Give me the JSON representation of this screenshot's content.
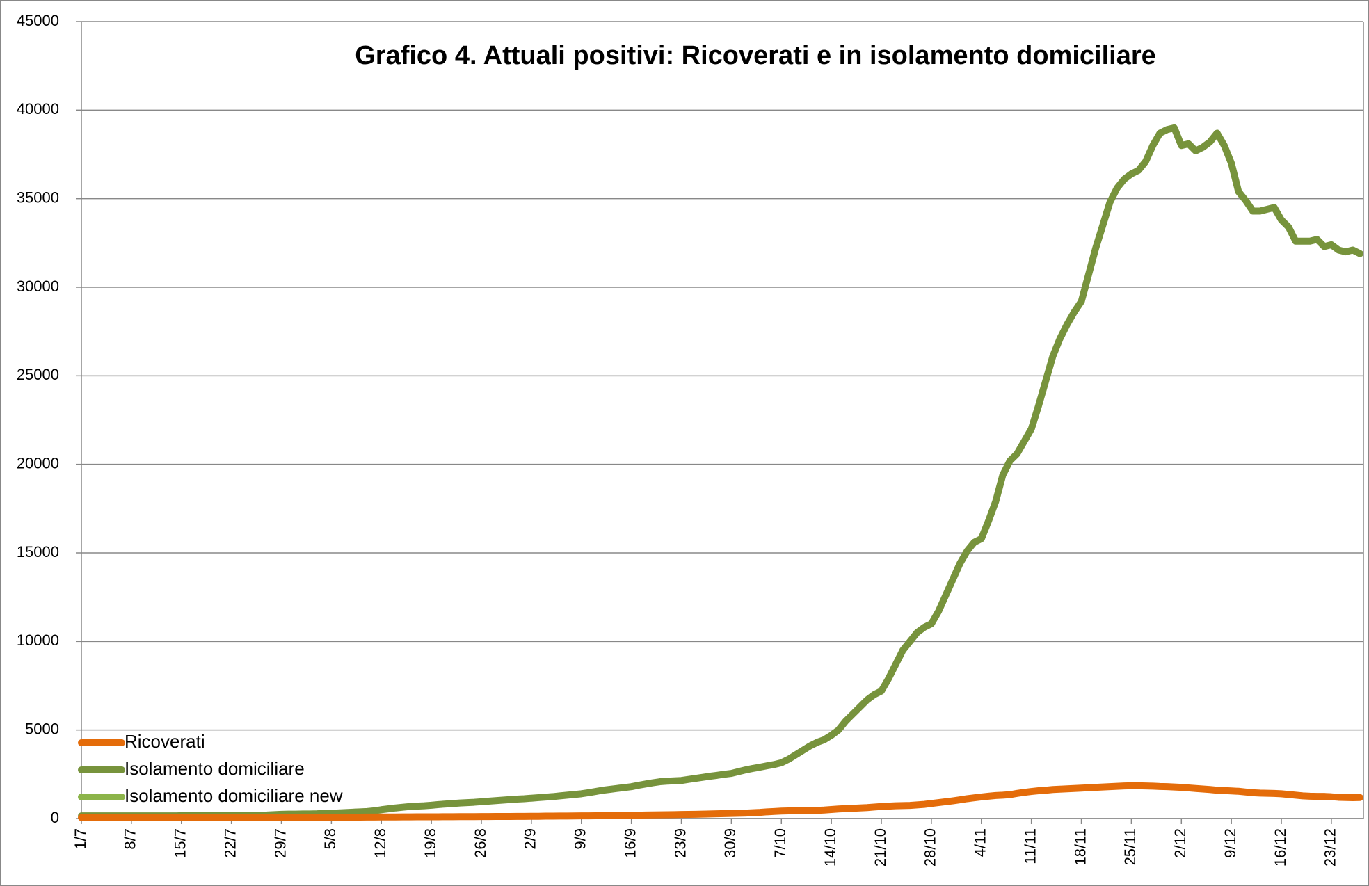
{
  "chart_data": {
    "type": "line",
    "title": "Grafico 4. Attuali positivi: Ricoverati e in isolamento domiciliare",
    "categories": [
      "1/7",
      null,
      null,
      null,
      null,
      null,
      null,
      "8/7",
      null,
      null,
      null,
      null,
      null,
      null,
      "15/7",
      null,
      null,
      null,
      null,
      null,
      null,
      "22/7",
      null,
      null,
      null,
      null,
      null,
      null,
      "29/7",
      null,
      null,
      null,
      null,
      null,
      null,
      "5/8",
      null,
      null,
      null,
      null,
      null,
      null,
      "12/8",
      null,
      null,
      null,
      null,
      null,
      null,
      "19/8",
      null,
      null,
      null,
      null,
      null,
      null,
      "26/8",
      null,
      null,
      null,
      null,
      null,
      null,
      "2/9",
      null,
      null,
      null,
      null,
      null,
      null,
      "9/9",
      null,
      null,
      null,
      null,
      null,
      null,
      "16/9",
      null,
      null,
      null,
      null,
      null,
      null,
      "23/9",
      null,
      null,
      null,
      null,
      null,
      null,
      "30/9",
      null,
      null,
      null,
      null,
      null,
      null,
      "7/10",
      null,
      null,
      null,
      null,
      null,
      null,
      "14/10",
      null,
      null,
      null,
      null,
      null,
      null,
      "21/10",
      null,
      null,
      null,
      null,
      null,
      null,
      "28/10",
      null,
      null,
      null,
      null,
      null,
      null,
      "4/11",
      null,
      null,
      null,
      null,
      null,
      null,
      "11/11",
      null,
      null,
      null,
      null,
      null,
      null,
      "18/11",
      null,
      null,
      null,
      null,
      null,
      null,
      "25/11",
      null,
      null,
      null,
      null,
      null,
      null,
      "2/12",
      null,
      null,
      null,
      null,
      null,
      null,
      "9/12",
      null,
      null,
      null,
      null,
      null,
      null,
      "16/12",
      null,
      null,
      null,
      null,
      null,
      null,
      "23/12",
      null,
      null,
      null,
      null
    ],
    "series": [
      {
        "name": "Ricoverati",
        "color": "#e46c0a",
        "values": [
          50,
          50,
          50,
          50,
          50,
          50,
          50,
          50,
          50,
          50,
          50,
          50,
          50,
          50,
          50,
          50,
          50,
          50,
          50,
          50,
          50,
          50,
          50,
          55,
          55,
          55,
          60,
          60,
          60,
          60,
          65,
          65,
          70,
          70,
          70,
          75,
          75,
          80,
          80,
          80,
          85,
          85,
          90,
          90,
          90,
          95,
          95,
          100,
          100,
          100,
          100,
          105,
          105,
          110,
          110,
          110,
          115,
          115,
          120,
          120,
          120,
          125,
          125,
          130,
          130,
          135,
          135,
          140,
          140,
          145,
          150,
          150,
          155,
          160,
          165,
          170,
          175,
          180,
          190,
          200,
          205,
          210,
          215,
          220,
          230,
          235,
          240,
          250,
          260,
          270,
          280,
          290,
          300,
          310,
          330,
          350,
          380,
          400,
          420,
          430,
          440,
          445,
          450,
          460,
          480,
          510,
          540,
          560,
          580,
          600,
          620,
          650,
          680,
          700,
          720,
          730,
          740,
          770,
          800,
          850,
          900,
          950,
          1000,
          1060,
          1120,
          1170,
          1220,
          1260,
          1300,
          1320,
          1350,
          1420,
          1480,
          1530,
          1570,
          1600,
          1640,
          1660,
          1680,
          1700,
          1720,
          1740,
          1760,
          1780,
          1800,
          1820,
          1840,
          1850,
          1850,
          1840,
          1830,
          1810,
          1800,
          1780,
          1760,
          1730,
          1700,
          1670,
          1640,
          1600,
          1580,
          1560,
          1540,
          1500,
          1460,
          1440,
          1430,
          1420,
          1400,
          1360,
          1320,
          1280,
          1260,
          1250,
          1250,
          1230,
          1200,
          1190,
          1180,
          1190
        ]
      },
      {
        "name": "Isolamento domiciliare",
        "color": "#77933c",
        "values": [
          150,
          150,
          150,
          150,
          150,
          150,
          150,
          150,
          150,
          150,
          150,
          150,
          150,
          150,
          160,
          160,
          160,
          160,
          170,
          170,
          170,
          170,
          180,
          180,
          190,
          190,
          200,
          220,
          240,
          250,
          250,
          260,
          260,
          270,
          290,
          300,
          320,
          340,
          360,
          380,
          400,
          440,
          500,
          550,
          600,
          640,
          680,
          700,
          720,
          750,
          790,
          820,
          850,
          880,
          900,
          920,
          950,
          980,
          1010,
          1040,
          1070,
          1100,
          1120,
          1150,
          1180,
          1210,
          1240,
          1280,
          1320,
          1360,
          1400,
          1460,
          1530,
          1600,
          1650,
          1700,
          1750,
          1800,
          1880,
          1950,
          2020,
          2080,
          2110,
          2130,
          2150,
          2210,
          2270,
          2330,
          2390,
          2440,
          2500,
          2550,
          2650,
          2750,
          2830,
          2900,
          2980,
          3050,
          3150,
          3350,
          3600,
          3850,
          4100,
          4300,
          4450,
          4700,
          5000,
          5500,
          5900,
          6300,
          6700,
          7000,
          7200,
          7900,
          8700,
          9500,
          10000,
          10500,
          10800,
          11000,
          11700,
          12600,
          13500,
          14400,
          15100,
          15600,
          15800,
          16800,
          17900,
          19400,
          20200,
          20600,
          21300,
          22000,
          23300,
          24700,
          26100,
          27100,
          27900,
          28600,
          29200,
          30700,
          32200,
          33500,
          34800,
          35600,
          36100,
          36400,
          36600,
          37100,
          38000,
          38700,
          38900,
          39000,
          38000,
          38100,
          37700,
          37900,
          38200,
          38700,
          38000,
          37000,
          35400,
          34900,
          34300,
          34300,
          34400,
          34500,
          33800,
          33400,
          32600,
          32600,
          32600,
          32700,
          32300,
          32400,
          32100,
          32000,
          32100,
          31900
        ]
      },
      {
        "name": "Isolamento domiciliare new",
        "color": "#8cb44a",
        "values": [
          null,
          null,
          null,
          null,
          null,
          null,
          null,
          null,
          null,
          null,
          null,
          null,
          null,
          null,
          null,
          null,
          null,
          null,
          null,
          null,
          null,
          null,
          null,
          null,
          null,
          null,
          null,
          null,
          null,
          null,
          null,
          null,
          null,
          null,
          null,
          null,
          null,
          null,
          null,
          null,
          null,
          null,
          null,
          null,
          null,
          null,
          null,
          null,
          null,
          null,
          null,
          null,
          null,
          null,
          null,
          null,
          null,
          null,
          null,
          null,
          null,
          null,
          null,
          null,
          null,
          null,
          null,
          null,
          null,
          null,
          null,
          null,
          null,
          null,
          null,
          null,
          null,
          null,
          null,
          null,
          null,
          null,
          null,
          null,
          null,
          null,
          null,
          null,
          null,
          null,
          null,
          null,
          null,
          null,
          null,
          null,
          null,
          null,
          null,
          null,
          null,
          null,
          null,
          null,
          null,
          null,
          null,
          null,
          null,
          null,
          null,
          null,
          null,
          null,
          null,
          null,
          null,
          null,
          null,
          null,
          null,
          null,
          null,
          null,
          null,
          null,
          null,
          null,
          null,
          null,
          null,
          null,
          null,
          null,
          null,
          null,
          null,
          null,
          null,
          null,
          null,
          null,
          null,
          null,
          null,
          null,
          null,
          null,
          null,
          null,
          null,
          null,
          null,
          null,
          null,
          null,
          null,
          null,
          null,
          null,
          null,
          null,
          null,
          null,
          null,
          null,
          null,
          null,
          null,
          null,
          null,
          null,
          null,
          null,
          null,
          null,
          null,
          null,
          null,
          null
        ]
      }
    ],
    "ylim": [
      0,
      45000
    ],
    "yticks": [
      0,
      5000,
      10000,
      15000,
      20000,
      25000,
      30000,
      35000,
      40000,
      45000
    ],
    "grid": true,
    "legend": "bottom-left"
  }
}
